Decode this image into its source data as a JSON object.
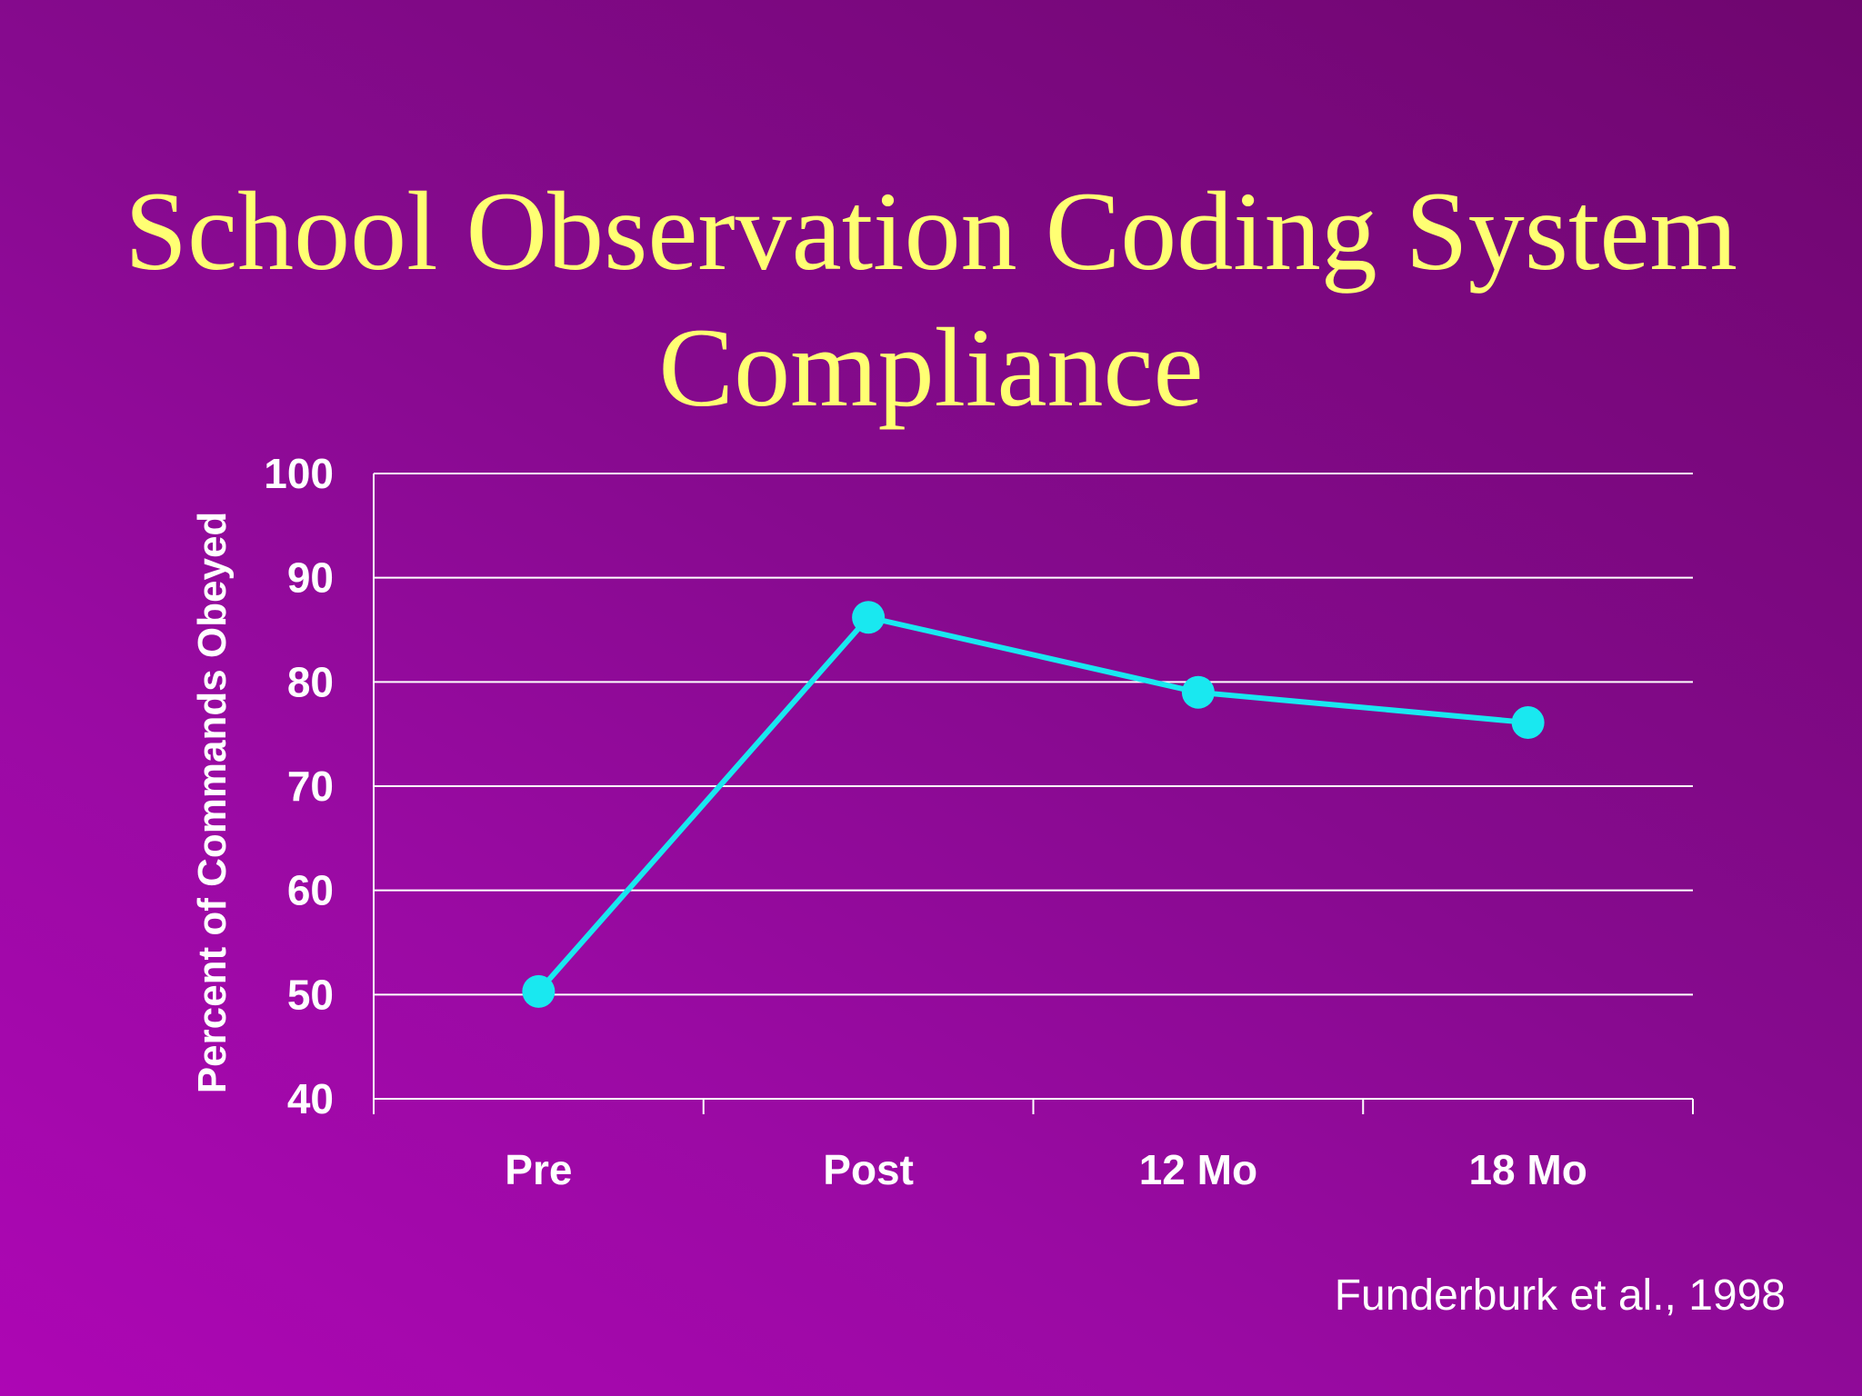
{
  "slide": {
    "title_line1": "School Observation Coding System",
    "title_line2": "Compliance",
    "citation": "Funderburk et al., 1998"
  },
  "chart_data": {
    "type": "line",
    "title": "School Observation Coding System Compliance",
    "categories": [
      "Pre",
      "Post",
      "12 Mo",
      "18 Mo"
    ],
    "series": [
      {
        "values": [
          50.3,
          86.2,
          79,
          76.1
        ],
        "color": "#19e8f0"
      }
    ],
    "xlabel": "",
    "ylabel": "Percent of Commands Obeyed",
    "ylim": [
      40,
      100
    ],
    "yticks": [
      40,
      50,
      60,
      70,
      80,
      90,
      100
    ],
    "grid": true,
    "legend": "none",
    "colors": {
      "gridline": "#ffffff",
      "text": "#ffffff",
      "title": "#ffff73"
    }
  }
}
